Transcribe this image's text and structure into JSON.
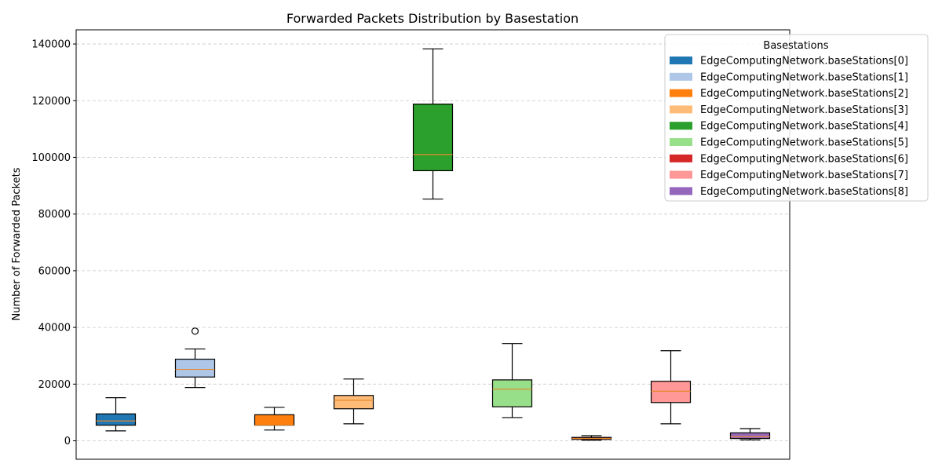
{
  "chart_data": {
    "type": "box",
    "title": "Forwarded Packets Distribution by Basestation",
    "xlabel": "",
    "ylabel": "Number of Forwarded Packets",
    "ylim": [
      -6500,
      145000
    ],
    "yticks": [
      0,
      20000,
      40000,
      60000,
      80000,
      100000,
      120000,
      140000
    ],
    "grid": "y-dashed",
    "legend": {
      "title": "Basestations",
      "placement": "top-right-outside"
    },
    "series": [
      {
        "name": "EdgeComputingNetwork.baseStations[0]",
        "color": "#1f77b4",
        "whisker_low": 3500,
        "q1": 5500,
        "median": 7000,
        "q3": 9500,
        "whisker_high": 15200,
        "outliers": []
      },
      {
        "name": "EdgeComputingNetwork.baseStations[1]",
        "color": "#aec7e8",
        "whisker_low": 18800,
        "q1": 22500,
        "median": 25200,
        "q3": 28800,
        "whisker_high": 32400,
        "outliers": [
          38700
        ]
      },
      {
        "name": "EdgeComputingNetwork.baseStations[2]",
        "color": "#ff7f0e",
        "whisker_low": 3800,
        "q1": 5500,
        "median": 5500,
        "q3": 9200,
        "whisker_high": 11800,
        "outliers": []
      },
      {
        "name": "EdgeComputingNetwork.baseStations[3]",
        "color": "#ffbb78",
        "whisker_low": 6000,
        "q1": 11300,
        "median": 14300,
        "q3": 16000,
        "whisker_high": 21800,
        "outliers": []
      },
      {
        "name": "EdgeComputingNetwork.baseStations[4]",
        "color": "#2ca02c",
        "whisker_low": 85300,
        "q1": 95300,
        "median": 101000,
        "q3": 118800,
        "whisker_high": 138300,
        "outliers": []
      },
      {
        "name": "EdgeComputingNetwork.baseStations[5]",
        "color": "#98df8a",
        "whisker_low": 8200,
        "q1": 12000,
        "median": 18200,
        "q3": 21500,
        "whisker_high": 34300,
        "outliers": []
      },
      {
        "name": "EdgeComputingNetwork.baseStations[6]",
        "color": "#d62728",
        "whisker_low": 200,
        "q1": 500,
        "median": 800,
        "q3": 1200,
        "whisker_high": 1800,
        "outliers": []
      },
      {
        "name": "EdgeComputingNetwork.baseStations[7]",
        "color": "#ff9896",
        "whisker_low": 6000,
        "q1": 13500,
        "median": 17500,
        "q3": 21000,
        "whisker_high": 31800,
        "outliers": []
      },
      {
        "name": "EdgeComputingNetwork.baseStations[8]",
        "color": "#9467bd",
        "whisker_low": 300,
        "q1": 800,
        "median": 1500,
        "q3": 2800,
        "whisker_high": 4300,
        "outliers": []
      }
    ]
  }
}
